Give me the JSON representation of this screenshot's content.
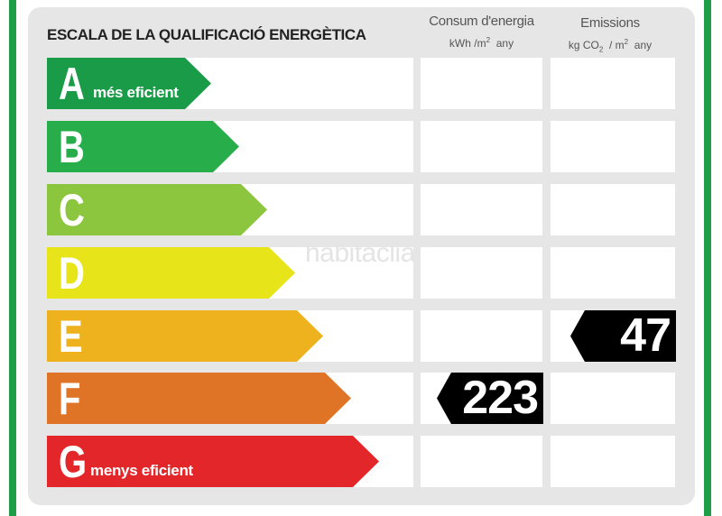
{
  "title": "ESCALA DE LA QUALIFICACIÓ ENERGÈTICA",
  "columns": {
    "energy": {
      "label": "Consum d'energia",
      "unit_prefix": "kWh /m",
      "unit_exp": "2",
      "unit_suffix": "any"
    },
    "emission": {
      "label": "Emissions",
      "unit_prefix": "kg CO",
      "unit_sub": "2",
      "unit_mid": "/ m",
      "unit_exp": "2",
      "unit_suffix": "any"
    }
  },
  "ratings": [
    {
      "letter": "A",
      "label": "més eficient",
      "color": "#1a9b48"
    },
    {
      "letter": "B",
      "label": "",
      "color": "#27ae4a"
    },
    {
      "letter": "C",
      "label": "",
      "color": "#8cc63f"
    },
    {
      "letter": "D",
      "label": "",
      "color": "#e8e41a"
    },
    {
      "letter": "E",
      "label": "",
      "color": "#eeb21f"
    },
    {
      "letter": "F",
      "label": "",
      "color": "#df7427"
    },
    {
      "letter": "G",
      "label": "menys eficient",
      "color": "#e2262a"
    }
  ],
  "energy_value": {
    "rating": "F",
    "value": "223"
  },
  "emission_value": {
    "rating": "E",
    "value": "47"
  },
  "watermark": "habitaclia"
}
